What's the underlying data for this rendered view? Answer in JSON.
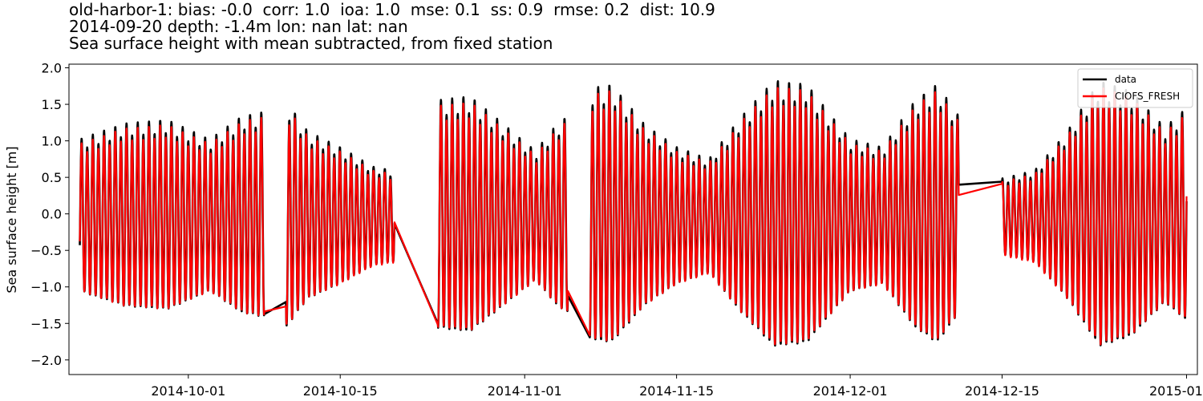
{
  "title": {
    "line1": "old-harbor-1: bias: -0.0  corr: 1.0  ioa: 1.0  mse: 0.1  ss: 0.9  rmse: 0.2  dist: 10.9",
    "line2": "2014-09-20 depth: -1.4m lon: nan lat: nan",
    "line3": "Sea surface height with mean subtracted, from fixed station"
  },
  "colors": {
    "data": "#000000",
    "model": "#ff0000"
  },
  "chart_data": {
    "type": "line",
    "title": "Sea surface height with mean subtracted, from fixed station",
    "xlabel": "",
    "ylabel": "Sea surface height [m]",
    "xlim": [
      "2014-09-20",
      "2015-01-02"
    ],
    "ylim": [
      -2.2,
      2.05
    ],
    "x_ticks": [
      "2014-10-01",
      "2014-10-15",
      "2014-11-01",
      "2014-11-15",
      "2014-12-01",
      "2014-12-15",
      "2015-01-01"
    ],
    "y_ticks": [
      "2.0",
      "1.5",
      "1.0",
      "0.5",
      "0.0",
      "−0.5",
      "−1.0",
      "−1.5",
      "−2.0"
    ],
    "y_tick_values": [
      2.0,
      1.5,
      1.0,
      0.5,
      0.0,
      -0.5,
      -1.0,
      -1.5,
      -2.0
    ],
    "legend": {
      "position": "top-right",
      "entries": [
        "data",
        "CIOFS_FRESH"
      ]
    },
    "grid": false,
    "series": [
      {
        "name": "data",
        "color": "#000000",
        "note": "semidiurnal tidal signal, amplitude varying with spring/neap cycle, gaps ~2014-10-08 to 10-10, 10-20 to 10-24, 11-05 to 11-07, 12-11 to 12-15"
      },
      {
        "name": "CIOFS_FRESH",
        "color": "#ff0000"
      }
    ],
    "segments": [
      {
        "start": "2014-09-21",
        "end": "2014-10-08",
        "amp": [
          [
            0,
            1.0
          ],
          [
            4,
            1.2
          ],
          [
            8,
            1.25
          ],
          [
            12,
            1.0
          ],
          [
            15,
            1.3
          ],
          [
            17,
            1.35
          ]
        ]
      },
      {
        "start": "2014-10-10",
        "end": "2014-10-20",
        "amp": [
          [
            0,
            1.5
          ],
          [
            2,
            1.1
          ],
          [
            5,
            0.9
          ],
          [
            8,
            0.65
          ],
          [
            10,
            0.6
          ]
        ]
      },
      {
        "start": "2014-10-24",
        "end": "2014-11-05",
        "amp": [
          [
            0,
            1.5
          ],
          [
            3,
            1.55
          ],
          [
            6,
            1.2
          ],
          [
            9,
            0.85
          ],
          [
            11,
            1.2
          ],
          [
            12,
            1.3
          ]
        ]
      },
      {
        "start": "2014-11-07",
        "end": "2014-12-11",
        "amp": [
          [
            0,
            1.65
          ],
          [
            2,
            1.7
          ],
          [
            5,
            1.2
          ],
          [
            8,
            0.9
          ],
          [
            11,
            0.75
          ],
          [
            14,
            1.3
          ],
          [
            17,
            1.75
          ],
          [
            20,
            1.7
          ],
          [
            24,
            1.0
          ],
          [
            27,
            0.9
          ],
          [
            30,
            1.5
          ],
          [
            32,
            1.7
          ],
          [
            34,
            1.3
          ]
        ]
      },
      {
        "start": "2014-12-15",
        "end": "2015-01-01",
        "amp": [
          [
            0,
            0.5
          ],
          [
            3,
            0.6
          ],
          [
            6,
            1.1
          ],
          [
            9,
            1.75
          ],
          [
            12,
            1.6
          ],
          [
            15,
            1.15
          ],
          [
            17,
            1.4
          ]
        ]
      }
    ]
  }
}
